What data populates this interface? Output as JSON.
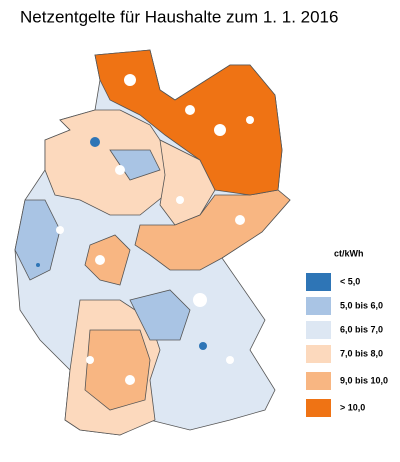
{
  "title": "Netzentgelte für Haushalte zum 1. 1. 2016",
  "legend": {
    "unit": "ct/kWh",
    "items": [
      {
        "label": "< 5,0",
        "color": "#2e75b6"
      },
      {
        "label": "5,0 bis 6,0",
        "color": "#a9c4e4"
      },
      {
        "label": "6,0 bis 7,0",
        "color": "#dde7f3"
      },
      {
        "label": "7,0 bis 8,0",
        "color": "#fcd9bd"
      },
      {
        "label": "9,0 bis 10,0",
        "color": "#f8b682"
      },
      {
        "label": "> 10,0",
        "color": "#ef7314"
      }
    ]
  }
}
